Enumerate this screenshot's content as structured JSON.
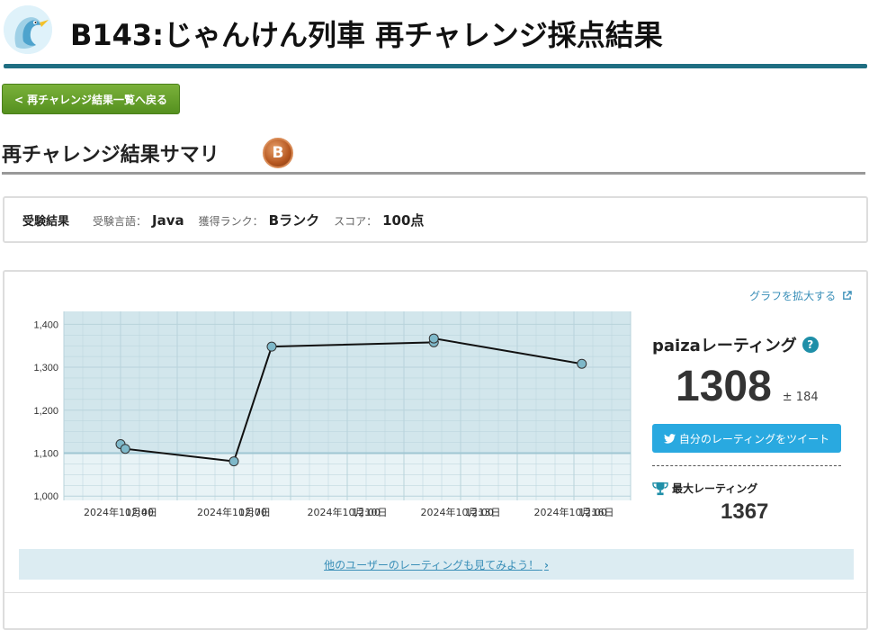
{
  "header": {
    "title": "B143:じゃんけん列車 再チャレンジ採点結果",
    "logo_icon": "paiza-bird-logo",
    "rule_color": "#1f6e82"
  },
  "toolbar": {
    "back_label": "< 再チャレンジ結果一覧へ戻る"
  },
  "summary": {
    "title": "再チャレンジ結果サマリ",
    "rank_badge": "B"
  },
  "result": {
    "heading": "受験結果",
    "language_label": "受験言語：",
    "language_value": "Java",
    "rank_label": "獲得ランク：",
    "rank_value": "Bランク",
    "score_label": "スコア：",
    "score_value": "100点"
  },
  "rating": {
    "expand_label": "グラフを拡大する",
    "title": "paizaレーティング",
    "value": "1308",
    "pm": "± 184",
    "tweet_label": "自分のレーティングをツイート",
    "max_label": "最大レーティング",
    "max_value": "1367",
    "others_link": "他のユーザーのレーティングも見てみよう！"
  },
  "chart_data": {
    "type": "line",
    "title": "",
    "xlabel": "",
    "ylabel": "",
    "ylim": [
      990,
      1430
    ],
    "yticks": [
      1000,
      1100,
      1200,
      1300,
      1400
    ],
    "ytick_labels": [
      "1,000",
      "1,100",
      "1,200",
      "1,300",
      "1,400"
    ],
    "xlim": [
      "2024-10-02 12:00",
      "2024-10-17 12:00"
    ],
    "xtick_labels": [
      "2024年10月4日",
      "12:00",
      "2024年10月7日",
      "12:00",
      "2024年10月10日",
      "12:00",
      "2024年10月13日",
      "12:00",
      "2024年10月16日",
      "12:00"
    ],
    "xtick_values": [
      "2024-10-04 00:00",
      "2024-10-04 12:00",
      "2024-10-07 00:00",
      "2024-10-07 12:00",
      "2024-10-10 00:00",
      "2024-10-10 12:00",
      "2024-10-13 00:00",
      "2024-10-13 12:00",
      "2024-10-16 00:00",
      "2024-10-16 12:00"
    ],
    "band_upper": 1100,
    "grid": true,
    "series": [
      {
        "x": [
          "2024-10-04 00:00",
          "2024-10-04 03:00",
          "2024-10-07 00:00",
          "2024-10-08 00:00",
          "2024-10-12 07:00",
          "2024-10-12 07:00",
          "2024-10-16 05:00"
        ],
        "y": [
          1121,
          1110,
          1081,
          1348,
          1358,
          1367,
          1308
        ]
      }
    ],
    "colors": {
      "plot_bg_upper": "#d2e6ec",
      "plot_bg_lower": "#e8f3f6",
      "grid": "#b8d3db",
      "line": "#111111",
      "marker": "#7eb8c9"
    }
  }
}
